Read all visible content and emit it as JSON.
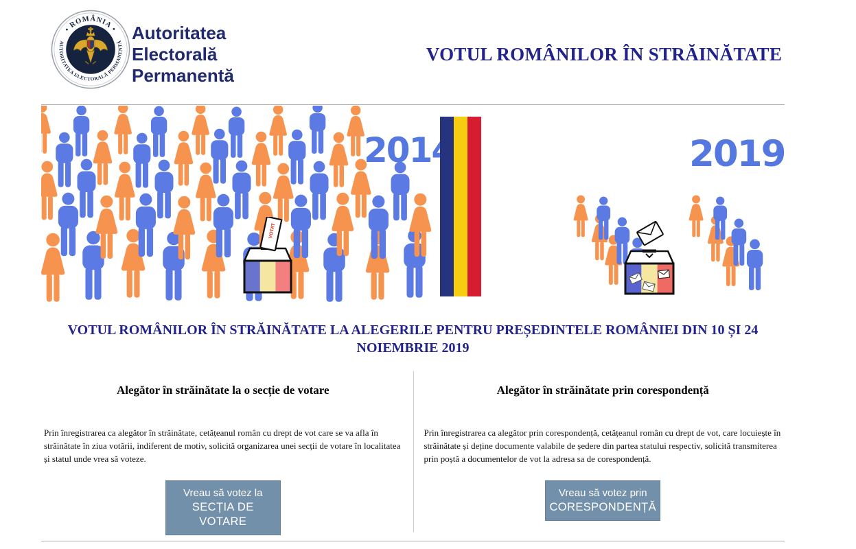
{
  "header": {
    "logo": {
      "seal_top_text": "• ROMÂNIA •",
      "seal_ring_text": "AUTORITATEA ELECTORALĂ PERMANENTĂ",
      "name_lines": [
        "Autoritatea",
        "Electorală",
        "Permanentă"
      ]
    },
    "page_title": "VOTUL ROMÂNILOR ÎN STRĂINĂTATE"
  },
  "banner": {
    "year_left": "2014",
    "year_right": "2019",
    "ballot_label": "VOTAT"
  },
  "main": {
    "heading_lines": [
      "VOTUL ROMÂNILOR ÎN STRĂINĂTATE LA ALEGERILE PENTRU PREȘEDINTELE ROMÂNIEI DIN 10 ȘI 24",
      "NOIEMBRIE 2019"
    ],
    "columns": [
      {
        "title": "Alegător în străinătate la o secție de votare",
        "body": "Prin înregistrarea ca alegător în străinătate, cetățeanul român cu drept de vot care se va afla în străinătate în ziua votării, indiferent de motiv, solicită organizarea unei secții de votare în localitatea și statul unde vrea să voteze.",
        "button": {
          "line1": "Vreau să votez la",
          "line2": "SECȚIA DE VOTARE"
        }
      },
      {
        "title": "Alegător în străinătate prin corespondență",
        "body": "Prin înregistrarea ca alegător prin corespondență, cetățeanul român cu drept de vot, care locuiește în străinătate și deține documente valabile de ședere din partea statului respectiv, solicită transmiterea prin poștă a documentelor de vot la adresa sa de corespondență.",
        "button": {
          "line1": "Vreau să votez prin",
          "line2": "CORESPONDENȚĂ"
        }
      }
    ]
  },
  "colors": {
    "title_navy": "#23238c",
    "logo_navy": "#212a6e",
    "year_blue": "#5577e0",
    "person_male": "#5b7ae3",
    "person_female": "#f6934f",
    "flag_blue": "#26337f",
    "flag_yellow": "#f7cd12",
    "flag_red": "#d51c30",
    "box_blue": "#6a74cc",
    "box_yellow": "#f5e6a2",
    "box_red": "#f37f7f",
    "box2_blue": "#5a64cf",
    "box2_red": "#ef6a62",
    "ballot_text_red": "#e03020",
    "button_bg": "#7290aa",
    "button_text": "#ffffff",
    "divider_gray": "#cccccc",
    "rule_gray": "#b0b0b0",
    "seal_navy": "#16233f",
    "seal_gold": "#d9a72e",
    "body_text": "#141414"
  }
}
